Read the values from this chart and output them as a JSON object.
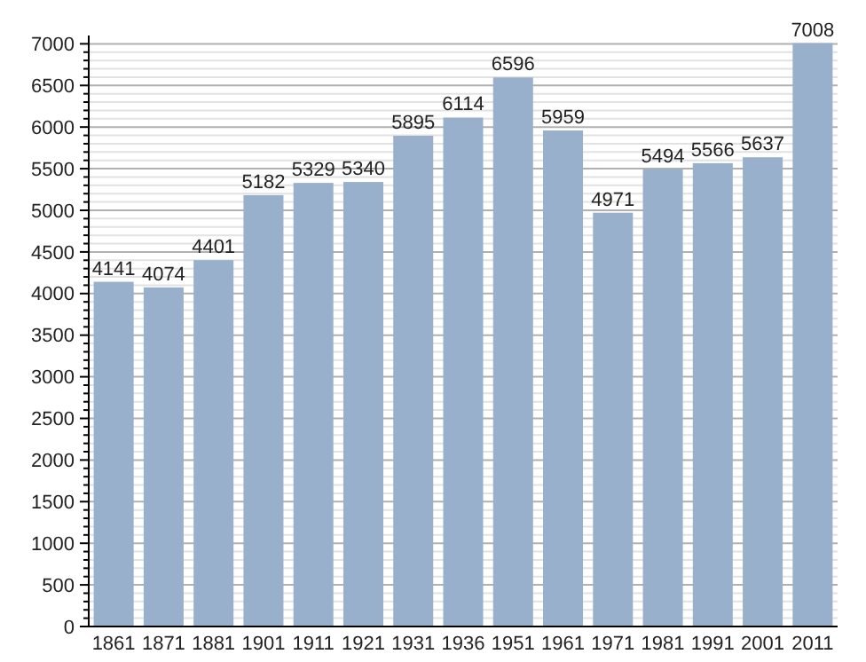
{
  "chart_data": {
    "type": "bar",
    "categories": [
      "1861",
      "1871",
      "1881",
      "1901",
      "1911",
      "1921",
      "1931",
      "1936",
      "1951",
      "1961",
      "1971",
      "1981",
      "1991",
      "2001",
      "2011"
    ],
    "values": [
      4141,
      4074,
      4401,
      5182,
      5329,
      5340,
      5895,
      6114,
      6596,
      5959,
      4971,
      5494,
      5566,
      5637,
      7008
    ],
    "color": "#98b0cb",
    "data_labels": true,
    "grid": "y",
    "ylim": [
      0,
      7100
    ],
    "yticks": [
      0,
      {
        "value": 100,
        "label": null
      },
      {
        "value": 200,
        "label": null
      },
      {
        "value": 300,
        "label": null
      },
      {
        "value": 400,
        "label": null
      },
      500,
      {
        "value": 600,
        "label": null
      },
      {
        "value": 700,
        "label": null
      },
      {
        "value": 800,
        "label": null
      },
      {
        "value": 900,
        "label": null
      },
      1000,
      {
        "value": 1100,
        "label": null
      },
      {
        "value": 1200,
        "label": null
      },
      {
        "value": 1300,
        "label": null
      },
      {
        "value": 1400,
        "label": null
      },
      1500,
      {
        "value": 1600,
        "label": null
      },
      {
        "value": 1700,
        "label": null
      },
      {
        "value": 1800,
        "label": null
      },
      {
        "value": 1900,
        "label": null
      },
      2000,
      {
        "value": 2100,
        "label": null
      },
      {
        "value": 2200,
        "label": null
      },
      {
        "value": 2300,
        "label": null
      },
      {
        "value": 2400,
        "label": null
      },
      2500,
      {
        "value": 2600,
        "label": null
      },
      {
        "value": 2700,
        "label": null
      },
      {
        "value": 2800,
        "label": null
      },
      {
        "value": 2900,
        "label": null
      },
      3000,
      {
        "value": 3100,
        "label": null
      },
      {
        "value": 3200,
        "label": null
      },
      {
        "value": 3300,
        "label": null
      },
      {
        "value": 3400,
        "label": null
      },
      3500,
      {
        "value": 3600,
        "label": null
      },
      {
        "value": 3700,
        "label": null
      },
      {
        "value": 3800,
        "label": null
      },
      {
        "value": 3900,
        "label": null
      },
      4000,
      {
        "value": 4100,
        "label": null
      },
      {
        "value": 4200,
        "label": null
      },
      {
        "value": 4300,
        "label": null
      },
      {
        "value": 4400,
        "label": null
      },
      4500,
      {
        "value": 4600,
        "label": null
      },
      {
        "value": 4700,
        "label": null
      },
      {
        "value": 4800,
        "label": null
      },
      {
        "value": 4900,
        "label": null
      },
      5000,
      {
        "value": 5100,
        "label": null
      },
      {
        "value": 5200,
        "label": null
      },
      {
        "value": 5300,
        "label": null
      },
      {
        "value": 5400,
        "label": null
      },
      5500,
      {
        "value": 5600,
        "label": null
      },
      {
        "value": 5700,
        "label": null
      },
      {
        "value": 5800,
        "label": null
      },
      {
        "value": 5900,
        "label": null
      },
      6000,
      {
        "value": 6100,
        "label": null
      },
      {
        "value": 6200,
        "label": null
      },
      {
        "value": 6300,
        "label": null
      },
      {
        "value": 6400,
        "label": null
      },
      6500,
      {
        "value": 6600,
        "label": null
      },
      {
        "value": 6700,
        "label": null
      },
      {
        "value": 6800,
        "label": null
      },
      {
        "value": 6900,
        "label": null
      },
      7000
    ]
  }
}
